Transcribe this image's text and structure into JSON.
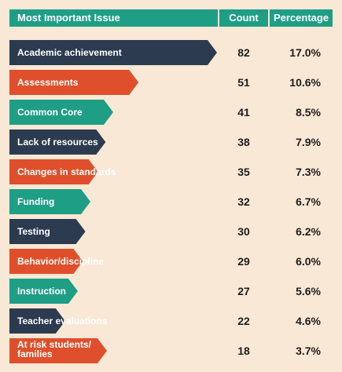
{
  "header": {
    "issue": "Most Important Issue",
    "count": "Count",
    "percentage": "Percentage"
  },
  "colors": {
    "navy": "#2c3b50",
    "orange": "#df4f2b",
    "teal": "#1f9e86",
    "background": "#f9e8d5"
  },
  "chart_data": {
    "type": "bar",
    "orientation": "horizontal",
    "categories": [
      "Academic achievement",
      "Assessments",
      "Common Core",
      "Lack of resources",
      "Changes in standards",
      "Funding",
      "Testing",
      "Behavior/discipline",
      "Instruction",
      "Teacher evaluations",
      "At risk students/ families"
    ],
    "label_lines": [
      [
        "Academic achievement"
      ],
      [
        "Assessments"
      ],
      [
        "Common Core"
      ],
      [
        "Lack of resources"
      ],
      [
        "Changes in standards"
      ],
      [
        "Funding"
      ],
      [
        "Testing"
      ],
      [
        "Behavior/discipline"
      ],
      [
        "Instruction"
      ],
      [
        "Teacher evaluations"
      ],
      [
        "At risk students/",
        "families"
      ]
    ],
    "values": [
      82,
      51,
      41,
      38,
      35,
      32,
      30,
      29,
      27,
      22,
      18
    ],
    "percentages": [
      "17.0%",
      "10.6%",
      "8.5%",
      "7.9%",
      "7.3%",
      "6.7%",
      "6.2%",
      "6.0%",
      "5.6%",
      "4.6%",
      "3.7%"
    ],
    "bar_colors": [
      "navy",
      "orange",
      "teal",
      "navy",
      "orange",
      "teal",
      "navy",
      "orange",
      "teal",
      "navy",
      "orange"
    ]
  }
}
